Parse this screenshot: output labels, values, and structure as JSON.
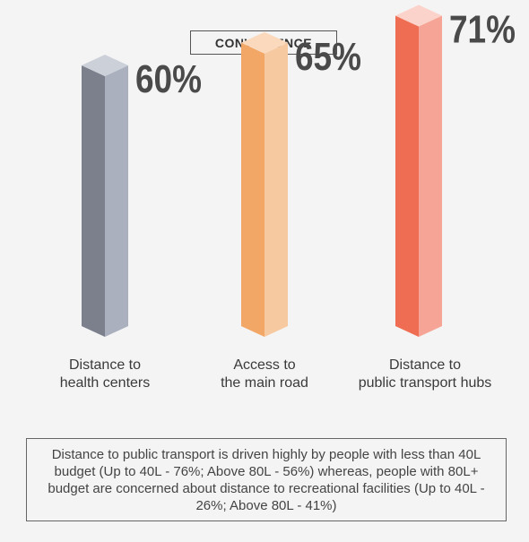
{
  "title": "CONVENIENCE",
  "chart_data": {
    "type": "bar",
    "categories": [
      "Distance to health centers",
      "Access to the main road",
      "Distance to public transport hubs"
    ],
    "category_lines": [
      [
        "Distance to",
        "health centers"
      ],
      [
        "Access to",
        "the main road"
      ],
      [
        "Distance to",
        "public transport hubs"
      ]
    ],
    "values": [
      60,
      65,
      71
    ],
    "value_labels": [
      "60%",
      "65%",
      "71%"
    ],
    "colors": [
      {
        "front": "#7c808d",
        "side": "#aab0bd",
        "top": "#ccd0d9"
      },
      {
        "front": "#f2a766",
        "side": "#f7c9a0",
        "top": "#fad9bd"
      },
      {
        "front": "#ef6e53",
        "side": "#f6a496",
        "top": "#fbd3cb"
      }
    ],
    "ylim": [
      0,
      100
    ]
  },
  "note": "Distance to public transport is driven highly by people with less than 40L budget (Up to 40L - 76%; Above 80L - 56%) whereas, people with 80L+ budget are concerned about distance to recreational facilities (Up to 40L - 26%; Above 80L - 41%)"
}
